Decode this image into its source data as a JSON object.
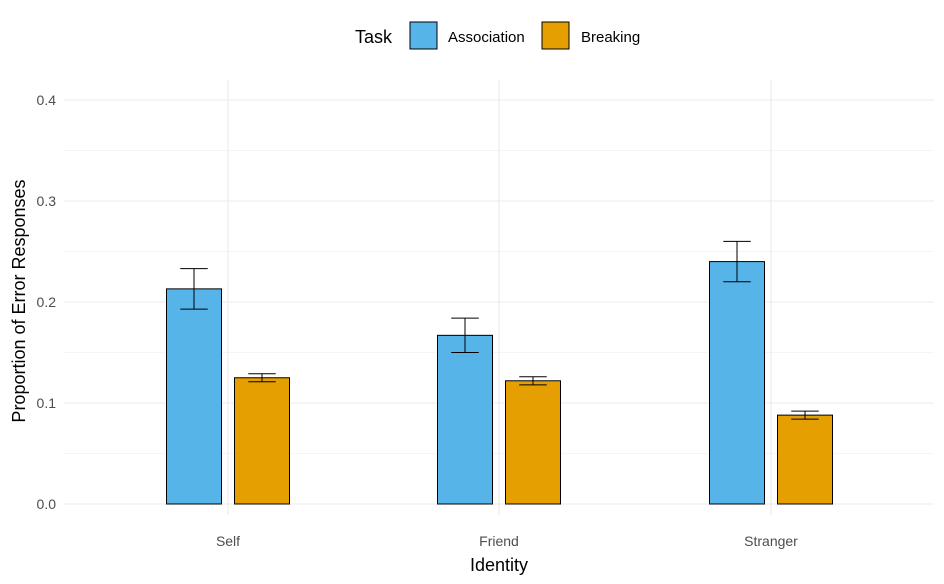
{
  "chart_data": {
    "type": "bar",
    "xlabel": "Identity",
    "ylabel": "Proportion of Error Responses",
    "categories": [
      "Self",
      "Friend",
      "Stranger"
    ],
    "ylim": [
      0,
      0.4
    ],
    "yticks": [
      0.0,
      0.1,
      0.2,
      0.3,
      0.4
    ],
    "ytick_labels": [
      "0.0",
      "0.1",
      "0.2",
      "0.3",
      "0.4"
    ],
    "grid": true,
    "legend": {
      "title": "Task",
      "position": "top"
    },
    "series": [
      {
        "name": "Association",
        "color": "#56B4E9",
        "values": [
          0.213,
          0.167,
          0.24
        ],
        "error": [
          0.02,
          0.017,
          0.02
        ]
      },
      {
        "name": "Breaking",
        "color": "#E69F00",
        "values": [
          0.125,
          0.122,
          0.088
        ],
        "error": [
          0.004,
          0.004,
          0.004
        ]
      }
    ]
  }
}
